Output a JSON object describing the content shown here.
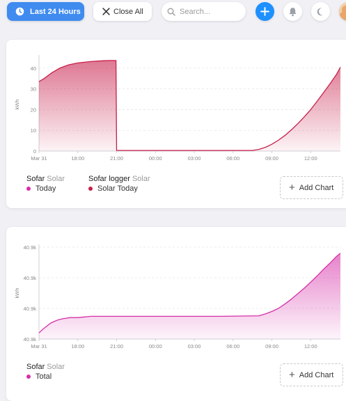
{
  "toolbar": {
    "time_range_label": "Last 24 Hours",
    "close_all_label": "Close All",
    "search_placeholder": "Search..."
  },
  "cards": [
    {
      "ylabel": "kWh",
      "legend": [
        {
          "name": "Sofar",
          "sub": "Solar",
          "items": [
            {
              "label": "Today",
              "color": "#d62fa8"
            }
          ]
        },
        {
          "name": "Sofar logger",
          "sub": "Solar",
          "items": [
            {
              "label": "Solar Today",
              "color": "#c81e4a"
            }
          ]
        }
      ],
      "add_chart_label": "Add Chart"
    },
    {
      "ylabel": "kWh",
      "legend": [
        {
          "name": "Sofar",
          "sub": "Solar",
          "items": [
            {
              "label": "Total",
              "color": "#d62fa8"
            }
          ]
        }
      ],
      "add_chart_label": "Add Chart"
    }
  ],
  "chart_data": [
    {
      "type": "area",
      "ylabel": "kWh",
      "y_ticks": [
        "0",
        "10",
        "20",
        "30",
        "40"
      ],
      "ylim": [
        0,
        45
      ],
      "x_ticks": [
        "Mar 31",
        "18:00",
        "21:00",
        "00:00",
        "03:00",
        "06:00",
        "09:00",
        "12:00"
      ],
      "x_unit": "hours since Mar 31 15:00",
      "x_tick_positions": [
        0,
        3,
        6,
        9,
        12,
        15,
        18,
        21
      ],
      "xlim": [
        0,
        23.3
      ],
      "color": "#c81e4a",
      "series": [
        {
          "name": "Solar Today",
          "x": [
            0,
            0.4,
            1,
            1.6,
            2.3,
            3,
            4,
            5,
            5.5,
            5.95,
            6.0,
            6.05,
            16.5,
            17,
            17.5,
            18,
            18.5,
            19,
            19.5,
            20,
            20.5,
            21,
            21.5,
            22,
            22.5,
            23,
            23.3
          ],
          "y": [
            33.5,
            35,
            37.8,
            40,
            41.6,
            42.5,
            43.2,
            43.6,
            43.7,
            43.7,
            0.3,
            0.3,
            0.3,
            0.8,
            1.8,
            3.3,
            5.2,
            7.5,
            10.2,
            13.2,
            16.5,
            20,
            24,
            28.2,
            32.5,
            37,
            40.5
          ]
        }
      ]
    },
    {
      "type": "area",
      "ylabel": "kWh",
      "y_ticks": [
        "40.9k",
        "40.9k",
        "40.9k",
        "40.9k"
      ],
      "ylim": [
        0,
        3
      ],
      "x_ticks": [
        "Mar 31",
        "18:00",
        "21:00",
        "00:00",
        "03:00",
        "06:00",
        "09:00",
        "12:00"
      ],
      "x_unit": "hours since Mar 31 15:00",
      "x_tick_positions": [
        0,
        3,
        6,
        9,
        12,
        15,
        18,
        21
      ],
      "xlim": [
        0,
        23.3
      ],
      "color": "#d62fa8",
      "series": [
        {
          "name": "Total",
          "x": [
            0,
            0.3,
            0.6,
            0.9,
            1.2,
            1.5,
            1.8,
            2.1,
            2.4,
            2.7,
            3.0,
            3.5,
            4.0,
            4.5,
            5.5,
            8,
            11,
            14,
            17,
            17.5,
            18,
            18.5,
            19,
            19.5,
            20,
            20.5,
            21,
            21.5,
            22,
            22.5,
            23,
            23.3
          ],
          "y": [
            0.2,
            0.32,
            0.42,
            0.52,
            0.58,
            0.63,
            0.66,
            0.68,
            0.7,
            0.7,
            0.7,
            0.72,
            0.74,
            0.74,
            0.74,
            0.74,
            0.74,
            0.74,
            0.76,
            0.82,
            0.9,
            1.0,
            1.14,
            1.3,
            1.48,
            1.66,
            1.86,
            2.06,
            2.28,
            2.48,
            2.7,
            2.8
          ]
        }
      ]
    }
  ]
}
